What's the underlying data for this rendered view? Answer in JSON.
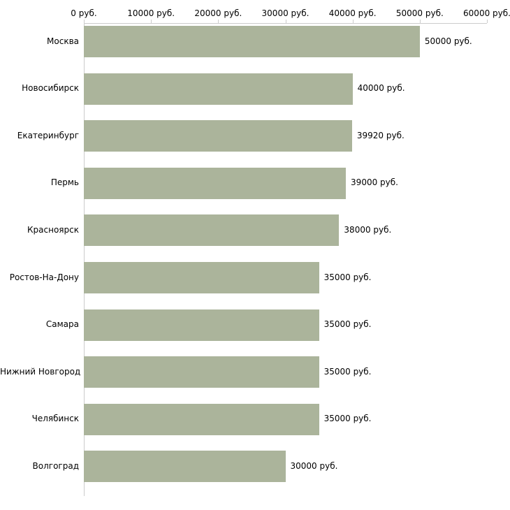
{
  "chart_data": {
    "type": "bar",
    "orientation": "horizontal",
    "title": "",
    "xlabel": "",
    "ylabel": "",
    "unit": "руб.",
    "categories": [
      "Москва",
      "Новосибирск",
      "Екатеринбург",
      "Пермь",
      "Красноярск",
      "Ростов-На-Дону",
      "Самара",
      "Нижний Новгород",
      "Челябинск",
      "Волгоград"
    ],
    "values": [
      50000,
      40000,
      39920,
      39000,
      38000,
      35000,
      35000,
      35000,
      35000,
      30000
    ],
    "value_labels": [
      "50000 руб.",
      "40000 руб.",
      "39920 руб.",
      "39000 руб.",
      "38000 руб.",
      "35000 руб.",
      "35000 руб.",
      "35000 руб.",
      "35000 руб.",
      "30000 руб."
    ],
    "xlim": [
      0,
      60000
    ],
    "x_ticks": [
      0,
      10000,
      20000,
      30000,
      40000,
      50000,
      60000
    ],
    "x_tick_labels": [
      "0 руб.",
      "10000 руб.",
      "20000 руб.",
      "30000 руб.",
      "40000 руб.",
      "50000 руб.",
      "60000 руб."
    ],
    "grid": false,
    "legend_position": "none",
    "colors": {
      "bar": "#abb49b",
      "axis": "#cccccc",
      "text": "#000000",
      "background": "#ffffff"
    }
  }
}
